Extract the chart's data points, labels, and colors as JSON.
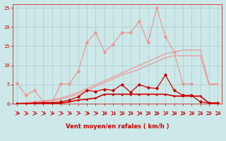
{
  "x": [
    0,
    1,
    2,
    3,
    4,
    5,
    6,
    7,
    8,
    9,
    10,
    11,
    12,
    13,
    14,
    15,
    16,
    17,
    18,
    19,
    20,
    21,
    22,
    23
  ],
  "line_pink_peaky": [
    5.3,
    2.2,
    3.5,
    0.5,
    0.3,
    5.2,
    5.2,
    8.5,
    16.0,
    18.5,
    13.5,
    15.5,
    18.5,
    18.5,
    21.5,
    16.0,
    25.0,
    17.5,
    13.5,
    5.2,
    5.2,
    null,
    null,
    null
  ],
  "line_pink_smooth1": [
    0.2,
    0.3,
    0.5,
    0.8,
    1.0,
    1.5,
    2.2,
    3.0,
    4.0,
    5.0,
    6.0,
    7.0,
    8.0,
    9.0,
    10.0,
    11.0,
    12.0,
    13.0,
    13.5,
    14.0,
    14.0,
    14.0,
    5.2,
    5.2
  ],
  "line_pink_smooth2": [
    0.1,
    0.2,
    0.4,
    0.6,
    0.8,
    1.2,
    1.8,
    2.5,
    3.5,
    4.5,
    5.5,
    6.5,
    7.5,
    8.2,
    9.0,
    10.0,
    11.0,
    12.0,
    12.5,
    12.5,
    12.5,
    12.5,
    5.0,
    5.0
  ],
  "line_dark_spiky": [
    0.0,
    0.1,
    0.2,
    0.3,
    0.3,
    0.5,
    1.0,
    1.8,
    3.5,
    3.2,
    3.8,
    3.5,
    5.0,
    3.0,
    5.0,
    4.2,
    4.0,
    7.5,
    3.5,
    2.2,
    2.2,
    0.5,
    0.2,
    0.2
  ],
  "line_dark_flat": [
    0.0,
    0.0,
    0.1,
    0.1,
    0.1,
    0.2,
    0.5,
    1.0,
    1.2,
    1.5,
    2.5,
    2.5,
    2.5,
    2.5,
    2.5,
    2.5,
    2.5,
    2.5,
    2.0,
    2.0,
    2.0,
    2.0,
    0.2,
    0.2
  ],
  "xlabel": "Vent moyen/en rafales ( km/h )",
  "ylim": [
    0,
    26
  ],
  "xlim": [
    -0.5,
    23.5
  ],
  "yticks": [
    0,
    5,
    10,
    15,
    20,
    25
  ],
  "xticks": [
    0,
    1,
    2,
    3,
    4,
    5,
    6,
    7,
    8,
    9,
    10,
    11,
    12,
    13,
    14,
    15,
    16,
    17,
    18,
    19,
    20,
    21,
    22,
    23
  ],
  "bg_color": "#cce8e8",
  "grid_color": "#aacccc",
  "line_pink_color": "#f09090",
  "line_dark_color": "#cc0000",
  "axis_color": "#cc0000",
  "text_color": "#cc0000",
  "tick_fontsize": 5,
  "xlabel_fontsize": 6
}
